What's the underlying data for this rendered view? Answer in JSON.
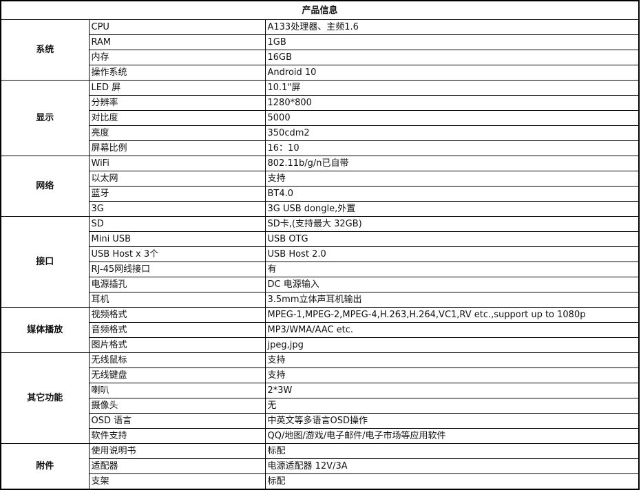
{
  "title": "产品信息",
  "sections": [
    {
      "category": "系统",
      "rows": [
        [
          "CPU",
          "A133处理器、主频1.6"
        ],
        [
          "RAM",
          "1GB"
        ],
        [
          "内存",
          "16GB"
        ],
        [
          "操作系统",
          "Android 10"
        ]
      ]
    },
    {
      "category": "显示",
      "rows": [
        [
          "LED 屏",
          "10.1\"屏"
        ],
        [
          "分辨率",
          "1280*800"
        ],
        [
          "对比度",
          "5000"
        ],
        [
          "亮度",
          "350cdm2"
        ],
        [
          "屏幕比例",
          "16：10"
        ]
      ]
    },
    {
      "category": "网络",
      "rows": [
        [
          "WiFi",
          "802.11b/g/n已自带"
        ],
        [
          "以太网",
          "支持"
        ],
        [
          "蓝牙",
          "BT4.0"
        ],
        [
          "3G",
          "3G USB dongle,外置"
        ]
      ]
    },
    {
      "category": "接口",
      "rows": [
        [
          "SD",
          "SD卡,(支持最大 32GB)"
        ],
        [
          "Mini USB",
          "USB OTG"
        ],
        [
          "USB Host x 3个",
          "USB Host 2.0"
        ],
        [
          "RJ-45网线接口",
          "有"
        ],
        [
          "电源插孔",
          "DC 电源输入"
        ],
        [
          "耳机",
          "3.5mm立体声耳机输出"
        ]
      ]
    },
    {
      "category": "媒体播放",
      "rows": [
        [
          "视频格式",
          "MPEG-1,MPEG-2,MPEG-4,H.263,H.264,VC1,RV etc.,support up to 1080p"
        ],
        [
          "音频格式",
          "MP3/WMA/AAC etc."
        ],
        [
          "图片格式",
          "jpeg,jpg"
        ]
      ]
    },
    {
      "category": "其它功能",
      "rows": [
        [
          "无线鼠标",
          "支持"
        ],
        [
          "无线键盘",
          "支持"
        ],
        [
          "喇叭",
          "2*3W"
        ],
        [
          "摄像头",
          "无"
        ],
        [
          "OSD 语言",
          "中英文等多语言OSD操作"
        ],
        [
          "软件支持",
          "QQ/地图/游戏/电子邮件/电子市场等应用软件"
        ]
      ]
    },
    {
      "category": "附件",
      "rows": [
        [
          "使用说明书",
          "标配"
        ],
        [
          "适配器",
          "电源适配器 12V/3A"
        ],
        [
          "支架",
          "标配"
        ]
      ]
    }
  ]
}
